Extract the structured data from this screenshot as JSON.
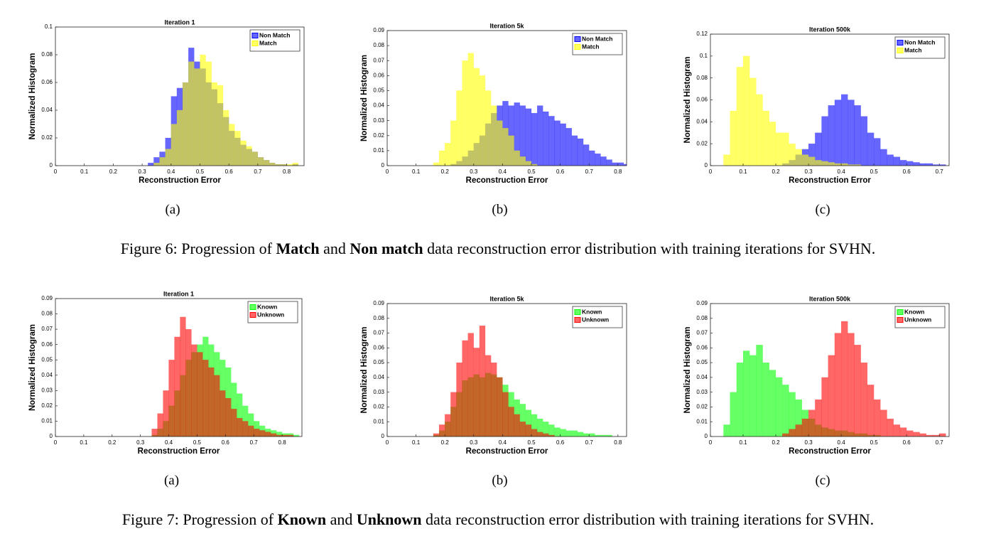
{
  "chart_data": [
    {
      "type": "histogram",
      "title": "Iteration 1",
      "xlabel": "Reconstruction Error",
      "ylabel": "Normalized Histogram",
      "subcaption": "(a)",
      "legend": "upper right",
      "xlim": [
        0,
        0.86
      ],
      "ylim": [
        0,
        0.1
      ],
      "xticks": [
        0,
        0.1,
        0.2,
        0.3,
        0.4,
        0.5,
        0.6,
        0.7,
        0.8
      ],
      "yticks": [
        0,
        0.02,
        0.04,
        0.06,
        0.08,
        0.1
      ],
      "bins": [
        0.32,
        0.34,
        0.36,
        0.38,
        0.4,
        0.42,
        0.44,
        0.46,
        0.48,
        0.5,
        0.52,
        0.54,
        0.56,
        0.58,
        0.6,
        0.62,
        0.64,
        0.66,
        0.68,
        0.7,
        0.72,
        0.74,
        0.76,
        0.78,
        0.8,
        0.82,
        0.84
      ],
      "series": [
        {
          "name": "Non Match",
          "color": "#0000ff",
          "values": [
            0.002,
            0.006,
            0.01,
            0.02,
            0.05,
            0.056,
            0.06,
            0.085,
            0.075,
            0.07,
            0.06,
            0.055,
            0.045,
            0.035,
            0.025,
            0.02,
            0.015,
            0.012,
            0.01,
            0.006,
            0.004,
            0.002,
            0.001,
            0.001,
            0,
            0.001
          ]
        },
        {
          "name": "Match",
          "color": "#ffff00",
          "values": [
            0,
            0.002,
            0.006,
            0.012,
            0.03,
            0.04,
            0.06,
            0.075,
            0.07,
            0.08,
            0.075,
            0.06,
            0.058,
            0.04,
            0.03,
            0.025,
            0.018,
            0.014,
            0.01,
            0.006,
            0.004,
            0.002,
            0.001,
            0.001,
            0.001,
            0.002
          ]
        }
      ]
    },
    {
      "type": "histogram",
      "title": "Iteration 5k",
      "xlabel": "Reconstruction Error",
      "ylabel": "Normalized Histogram",
      "subcaption": "(b)",
      "legend": "upper right",
      "xlim": [
        0,
        0.83
      ],
      "ylim": [
        0,
        0.09
      ],
      "xticks": [
        0,
        0.1,
        0.2,
        0.3,
        0.4,
        0.5,
        0.6,
        0.7,
        0.8
      ],
      "yticks": [
        0,
        0.01,
        0.02,
        0.03,
        0.04,
        0.05,
        0.06,
        0.07,
        0.08,
        0.09
      ],
      "bins": [
        0.16,
        0.18,
        0.2,
        0.22,
        0.24,
        0.26,
        0.28,
        0.3,
        0.32,
        0.34,
        0.36,
        0.38,
        0.4,
        0.42,
        0.44,
        0.46,
        0.48,
        0.5,
        0.52,
        0.54,
        0.56,
        0.58,
        0.6,
        0.62,
        0.64,
        0.66,
        0.68,
        0.7,
        0.72,
        0.74,
        0.76,
        0.78,
        0.8,
        0.82,
        0.84
      ],
      "series": [
        {
          "name": "Non Match",
          "color": "#0000ff",
          "values": [
            0,
            0,
            0,
            0.001,
            0.003,
            0.006,
            0.01,
            0.015,
            0.02,
            0.028,
            0.035,
            0.04,
            0.043,
            0.04,
            0.042,
            0.04,
            0.038,
            0.035,
            0.04,
            0.036,
            0.033,
            0.03,
            0.028,
            0.025,
            0.02,
            0.018,
            0.014,
            0.01,
            0.008,
            0.006,
            0.004,
            0.002,
            0.002,
            0.001
          ]
        },
        {
          "name": "Match",
          "color": "#ffff00",
          "values": [
            0.002,
            0.01,
            0.015,
            0.03,
            0.05,
            0.07,
            0.075,
            0.065,
            0.06,
            0.05,
            0.04,
            0.03,
            0.025,
            0.02,
            0.01,
            0.006,
            0.003,
            0.001,
            0,
            0,
            0,
            0,
            0,
            0,
            0,
            0,
            0,
            0,
            0,
            0,
            0,
            0,
            0,
            0
          ]
        }
      ]
    },
    {
      "type": "histogram",
      "title": "Iteration 500k",
      "xlabel": "Reconstruction Error",
      "ylabel": "Normalized Histogram",
      "subcaption": "(c)",
      "legend": "upper right",
      "xlim": [
        0,
        0.73
      ],
      "ylim": [
        0,
        0.12
      ],
      "xticks": [
        0,
        0.1,
        0.2,
        0.3,
        0.4,
        0.5,
        0.6,
        0.7
      ],
      "yticks": [
        0,
        0.02,
        0.04,
        0.06,
        0.08,
        0.1,
        0.12
      ],
      "bins": [
        0.04,
        0.06,
        0.08,
        0.1,
        0.12,
        0.14,
        0.16,
        0.18,
        0.2,
        0.22,
        0.24,
        0.26,
        0.28,
        0.3,
        0.32,
        0.34,
        0.36,
        0.38,
        0.4,
        0.42,
        0.44,
        0.46,
        0.48,
        0.5,
        0.52,
        0.54,
        0.56,
        0.58,
        0.6,
        0.62,
        0.64,
        0.66,
        0.68,
        0.7,
        0.72
      ],
      "series": [
        {
          "name": "Non Match",
          "color": "#0000ff",
          "values": [
            0,
            0,
            0,
            0,
            0,
            0,
            0,
            0,
            0,
            0.002,
            0.005,
            0.01,
            0.015,
            0.02,
            0.03,
            0.045,
            0.055,
            0.06,
            0.065,
            0.06,
            0.055,
            0.045,
            0.03,
            0.025,
            0.015,
            0.01,
            0.008,
            0.005,
            0.004,
            0.003,
            0.002,
            0.002,
            0.001,
            0.001
          ]
        },
        {
          "name": "Match",
          "color": "#ffff00",
          "values": [
            0.01,
            0.05,
            0.09,
            0.1,
            0.08,
            0.065,
            0.05,
            0.04,
            0.03,
            0.03,
            0.02,
            0.015,
            0.01,
            0.008,
            0.005,
            0.004,
            0.003,
            0.002,
            0.002,
            0.001,
            0.001,
            0,
            0,
            0,
            0,
            0,
            0,
            0,
            0,
            0,
            0,
            0,
            0,
            0
          ]
        }
      ]
    },
    {
      "type": "histogram",
      "title": "Iteration 1",
      "xlabel": "Reconstruction Error",
      "ylabel": "Normalized Histogram",
      "subcaption": "(a)",
      "legend": "upper right",
      "xlim": [
        0,
        0.87
      ],
      "ylim": [
        0,
        0.09
      ],
      "xticks": [
        0,
        0.1,
        0.2,
        0.3,
        0.4,
        0.5,
        0.6,
        0.7,
        0.8
      ],
      "yticks": [
        0,
        0.01,
        0.02,
        0.03,
        0.04,
        0.05,
        0.06,
        0.07,
        0.08,
        0.09
      ],
      "bins": [
        0.34,
        0.36,
        0.38,
        0.4,
        0.42,
        0.44,
        0.46,
        0.48,
        0.5,
        0.52,
        0.54,
        0.56,
        0.58,
        0.6,
        0.62,
        0.64,
        0.66,
        0.68,
        0.7,
        0.72,
        0.74,
        0.76,
        0.78,
        0.8,
        0.82,
        0.84,
        0.86
      ],
      "series": [
        {
          "name": "Known",
          "color": "#00ff00",
          "values": [
            0.001,
            0.005,
            0.01,
            0.02,
            0.03,
            0.04,
            0.05,
            0.055,
            0.06,
            0.065,
            0.06,
            0.055,
            0.05,
            0.045,
            0.035,
            0.028,
            0.02,
            0.015,
            0.01,
            0.007,
            0.005,
            0.004,
            0.003,
            0.002,
            0.002,
            0.001
          ]
        },
        {
          "name": "Unknown",
          "color": "#ff0000",
          "values": [
            0.005,
            0.015,
            0.03,
            0.05,
            0.065,
            0.078,
            0.07,
            0.06,
            0.055,
            0.05,
            0.045,
            0.04,
            0.03,
            0.025,
            0.018,
            0.012,
            0.01,
            0.007,
            0.005,
            0.004,
            0.003,
            0.002,
            0.001,
            0.001,
            0.001,
            0
          ]
        }
      ]
    },
    {
      "type": "histogram",
      "title": "Iteration 5k",
      "xlabel": "Reconstruction Error",
      "ylabel": "Normalized Histogram",
      "subcaption": "(b)",
      "legend": "upper right",
      "xlim": [
        0,
        0.83
      ],
      "ylim": [
        0,
        0.09
      ],
      "xticks": [
        0,
        0.1,
        0.2,
        0.3,
        0.4,
        0.5,
        0.6,
        0.7,
        0.8
      ],
      "yticks": [
        0,
        0.01,
        0.02,
        0.03,
        0.04,
        0.05,
        0.06,
        0.07,
        0.08,
        0.09
      ],
      "bins": [
        0.16,
        0.18,
        0.2,
        0.22,
        0.24,
        0.26,
        0.28,
        0.3,
        0.32,
        0.34,
        0.36,
        0.38,
        0.4,
        0.42,
        0.44,
        0.46,
        0.48,
        0.5,
        0.52,
        0.54,
        0.56,
        0.58,
        0.6,
        0.62,
        0.64,
        0.66,
        0.68,
        0.7,
        0.72,
        0.74,
        0.76,
        0.78,
        0.8
      ],
      "series": [
        {
          "name": "Known",
          "color": "#00ff00",
          "values": [
            0.001,
            0.004,
            0.01,
            0.02,
            0.03,
            0.038,
            0.04,
            0.042,
            0.04,
            0.043,
            0.042,
            0.04,
            0.035,
            0.03,
            0.025,
            0.022,
            0.018,
            0.015,
            0.012,
            0.01,
            0.008,
            0.006,
            0.005,
            0.004,
            0.004,
            0.003,
            0.002,
            0.002,
            0.001,
            0.001,
            0.001,
            0
          ]
        },
        {
          "name": "Unknown",
          "color": "#ff0000",
          "values": [
            0.002,
            0.008,
            0.015,
            0.03,
            0.05,
            0.065,
            0.07,
            0.06,
            0.075,
            0.055,
            0.05,
            0.04,
            0.03,
            0.02,
            0.015,
            0.01,
            0.008,
            0.005,
            0.003,
            0.002,
            0.001,
            0,
            0,
            0,
            0,
            0,
            0,
            0,
            0,
            0,
            0,
            0
          ]
        }
      ]
    },
    {
      "type": "histogram",
      "title": "Iteration 500k",
      "xlabel": "Reconstruction Error",
      "ylabel": "Normalized Histogram",
      "subcaption": "(c)",
      "legend": "upper right",
      "xlim": [
        0,
        0.73
      ],
      "ylim": [
        0,
        0.09
      ],
      "xticks": [
        0,
        0.1,
        0.2,
        0.3,
        0.4,
        0.5,
        0.6,
        0.7
      ],
      "yticks": [
        0,
        0.01,
        0.02,
        0.03,
        0.04,
        0.05,
        0.06,
        0.07,
        0.08,
        0.09
      ],
      "bins": [
        0.04,
        0.06,
        0.08,
        0.1,
        0.12,
        0.14,
        0.16,
        0.18,
        0.2,
        0.22,
        0.24,
        0.26,
        0.28,
        0.3,
        0.32,
        0.34,
        0.36,
        0.38,
        0.4,
        0.42,
        0.44,
        0.46,
        0.48,
        0.5,
        0.52,
        0.54,
        0.56,
        0.58,
        0.6,
        0.62,
        0.64,
        0.66,
        0.68,
        0.7,
        0.72
      ],
      "series": [
        {
          "name": "Known",
          "color": "#00ff00",
          "values": [
            0.008,
            0.03,
            0.05,
            0.058,
            0.055,
            0.062,
            0.05,
            0.045,
            0.04,
            0.035,
            0.03,
            0.025,
            0.018,
            0.012,
            0.008,
            0.006,
            0.005,
            0.004,
            0.004,
            0.003,
            0.002,
            0.002,
            0.001,
            0.001,
            0,
            0,
            0,
            0,
            0,
            0,
            0,
            0,
            0,
            0
          ]
        },
        {
          "name": "Unknown",
          "color": "#ff0000",
          "values": [
            0,
            0,
            0,
            0,
            0,
            0,
            0,
            0,
            0,
            0.002,
            0.005,
            0.008,
            0.012,
            0.018,
            0.025,
            0.04,
            0.055,
            0.07,
            0.078,
            0.07,
            0.062,
            0.05,
            0.035,
            0.025,
            0.018,
            0.012,
            0.008,
            0.006,
            0.004,
            0.003,
            0.002,
            0.001,
            0.001,
            0.002
          ]
        }
      ]
    }
  ],
  "captions": [
    {
      "segments": [
        "Figure 6: Progression of ",
        "Match",
        " and ",
        "Non match",
        " data reconstruction error distribution with training iterations for SVHN."
      ]
    },
    {
      "segments": [
        "Figure 7: Progression of ",
        "Known",
        " and ",
        "Unknown",
        " data reconstruction error distribution with training iterations for SVHN."
      ]
    }
  ]
}
